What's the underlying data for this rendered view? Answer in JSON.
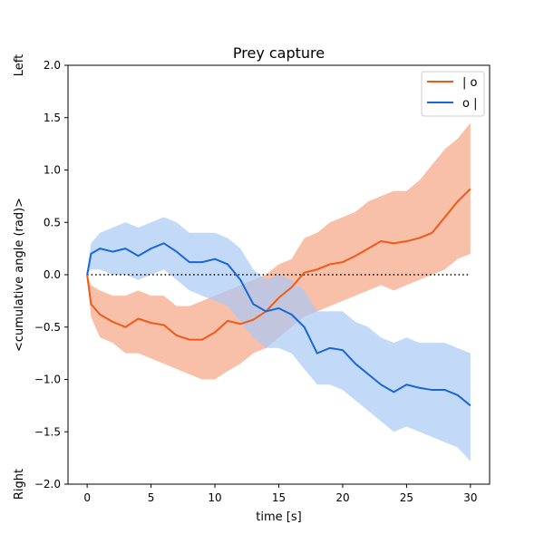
{
  "chart_data": {
    "type": "line",
    "title": "Prey capture",
    "xlabel": "time [s]",
    "ylabel": "<cumulative angle (rad)>",
    "ylabel_top": "Left",
    "ylabel_bottom": "Right",
    "xlim": [
      -1.5,
      31.5
    ],
    "ylim": [
      -2.0,
      2.0
    ],
    "xticks": [
      0,
      5,
      10,
      15,
      20,
      25,
      30
    ],
    "yticks": [
      -2.0,
      -1.5,
      -1.0,
      -0.5,
      0.0,
      0.5,
      1.0,
      1.5,
      2.0
    ],
    "grid": false,
    "legend_position": "top-right",
    "reference_line": {
      "y": 0.0,
      "x_range": [
        0,
        30
      ],
      "style": "dotted",
      "color": "#000000"
    },
    "series": [
      {
        "name": "| o",
        "color": "#f05a14",
        "band_color": "#f5a585",
        "x": [
          0,
          0.3,
          1,
          2,
          3,
          4,
          5,
          6,
          7,
          8,
          9,
          10,
          11,
          12,
          13,
          14,
          15,
          16,
          17,
          18,
          19,
          20,
          21,
          22,
          23,
          24,
          25,
          26,
          27,
          28,
          29,
          30
        ],
        "y": [
          0,
          -0.28,
          -0.38,
          -0.45,
          -0.5,
          -0.42,
          -0.46,
          -0.48,
          -0.58,
          -0.62,
          -0.62,
          -0.55,
          -0.44,
          -0.47,
          -0.43,
          -0.35,
          -0.22,
          -0.12,
          0.02,
          0.05,
          0.1,
          0.12,
          0.18,
          0.25,
          0.32,
          0.3,
          0.32,
          0.35,
          0.4,
          0.55,
          0.7,
          0.82
        ],
        "lower": [
          0,
          -0.4,
          -0.6,
          -0.65,
          -0.75,
          -0.75,
          -0.8,
          -0.85,
          -0.9,
          -0.95,
          -1.0,
          -1.0,
          -0.92,
          -0.85,
          -0.75,
          -0.7,
          -0.6,
          -0.5,
          -0.4,
          -0.35,
          -0.3,
          -0.25,
          -0.2,
          -0.15,
          -0.1,
          -0.15,
          -0.1,
          -0.05,
          0.0,
          0.05,
          0.15,
          0.2
        ],
        "upper": [
          0,
          -0.1,
          -0.15,
          -0.2,
          -0.2,
          -0.15,
          -0.2,
          -0.2,
          -0.3,
          -0.3,
          -0.25,
          -0.2,
          -0.15,
          -0.1,
          -0.05,
          0.0,
          0.1,
          0.15,
          0.35,
          0.4,
          0.5,
          0.55,
          0.6,
          0.7,
          0.75,
          0.8,
          0.8,
          0.9,
          1.05,
          1.2,
          1.3,
          1.45
        ]
      },
      {
        "name": "o |",
        "color": "#1767d8",
        "band_color": "#a9c9f5",
        "x": [
          0,
          0.3,
          1,
          2,
          3,
          4,
          5,
          6,
          7,
          8,
          9,
          10,
          11,
          12,
          13,
          14,
          15,
          16,
          17,
          18,
          19,
          20,
          21,
          22,
          23,
          24,
          25,
          26,
          27,
          28,
          29,
          30
        ],
        "y": [
          0,
          0.2,
          0.25,
          0.22,
          0.25,
          0.18,
          0.25,
          0.3,
          0.22,
          0.12,
          0.12,
          0.15,
          0.1,
          -0.05,
          -0.28,
          -0.35,
          -0.32,
          -0.38,
          -0.5,
          -0.75,
          -0.7,
          -0.72,
          -0.85,
          -0.95,
          -1.05,
          -1.12,
          -1.05,
          -1.08,
          -1.1,
          -1.1,
          -1.15,
          -1.25
        ],
        "lower": [
          0,
          0.05,
          0.05,
          0.0,
          0.0,
          -0.05,
          0.0,
          0.05,
          -0.05,
          -0.15,
          -0.2,
          -0.25,
          -0.3,
          -0.45,
          -0.6,
          -0.7,
          -0.7,
          -0.75,
          -0.9,
          -1.05,
          -1.05,
          -1.1,
          -1.2,
          -1.3,
          -1.4,
          -1.5,
          -1.45,
          -1.5,
          -1.55,
          -1.6,
          -1.65,
          -1.78
        ],
        "upper": [
          0,
          0.3,
          0.4,
          0.45,
          0.5,
          0.45,
          0.5,
          0.55,
          0.5,
          0.4,
          0.4,
          0.4,
          0.35,
          0.25,
          0.05,
          -0.05,
          0.0,
          -0.05,
          -0.15,
          -0.35,
          -0.35,
          -0.35,
          -0.45,
          -0.5,
          -0.6,
          -0.65,
          -0.6,
          -0.65,
          -0.65,
          -0.65,
          -0.7,
          -0.75
        ]
      }
    ]
  }
}
